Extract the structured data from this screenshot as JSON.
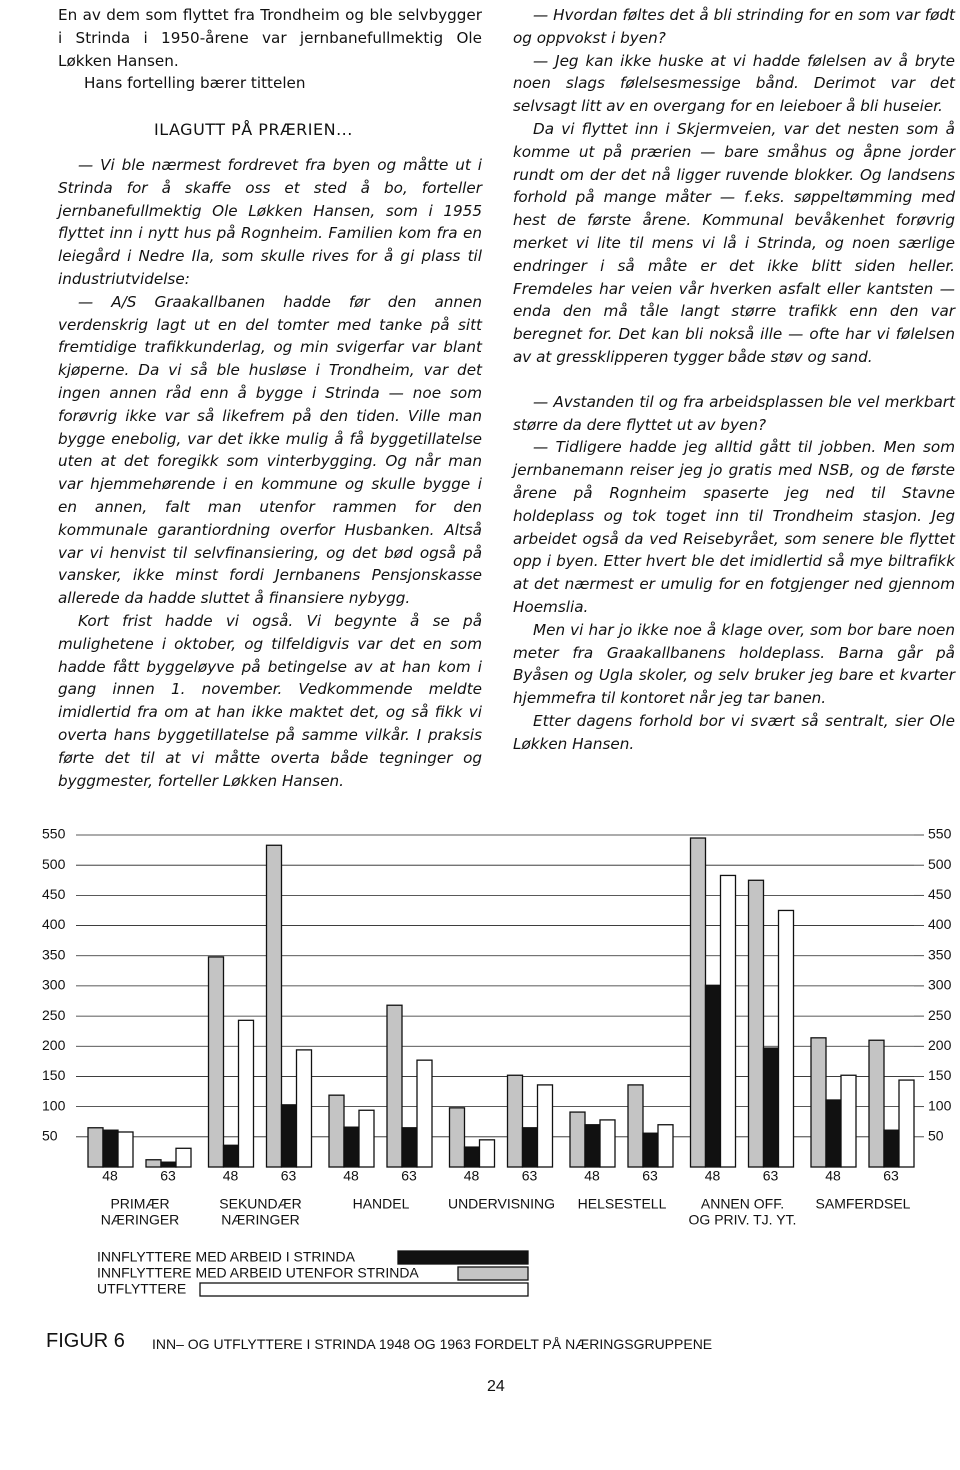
{
  "left_column": {
    "intro": [
      "En av dem som flyttet fra Trondheim og ble selvbygger i Strinda i 1950-årene var jernbanefullmektig Ole Løkken Hansen.",
      "Hans fortelling bærer tittelen"
    ],
    "heading": "ILAGUTT PÅ PRÆRIEN...",
    "paragraphs": [
      "— Vi ble nærmest fordrevet fra byen og måtte ut i Strinda for å skaffe oss et sted å bo, forteller jernbanefullmektig Ole Løkken Hansen, som i 1955 flyttet inn i nytt hus på Rognheim. Familien kom fra en leiegård i Nedre Ila, som skulle rives for å gi plass til industriutvidelse:",
      "— A/S Graakallbanen hadde før den annen verdenskrig lagt ut en del tomter med tanke på sitt fremtidige trafikkunderlag, og min svigerfar var blant kjøperne. Da vi så ble husløse i Trondheim, var det ingen annen råd enn å bygge i Strinda — noe som forøvrig ikke var så likefrem på den tiden. Ville man bygge enebolig, var det ikke mulig å få byggetillatelse uten at det foregikk som vinterbygging. Og når man var hjemmehørende i en kommune og skulle bygge i en annen, falt man utenfor rammen for den kommunale garantiordning overfor Husbanken. Altså var vi henvist til selvfinansiering, og det bød også på vansker, ikke minst fordi Jernbanens Pensjonskasse allerede da hadde sluttet å finansiere nybygg.",
      "Kort frist hadde vi også. Vi begynte å se på mulighetene i oktober, og tilfeldigvis var det en som hadde fått byggeløyve på betingelse av at han kom i gang innen 1. november. Vedkommende meldte imidlertid fra om at han ikke maktet det, og så fikk vi overta hans byggetillatelse på samme vilkår. I praksis førte det til at vi måtte overta både tegninger og byggmester, forteller Løkken Hansen."
    ]
  },
  "right_column": {
    "paragraphs": [
      "— Hvordan føltes det å bli strinding for en som var født og oppvokst i byen?",
      "— Jeg kan ikke huske at vi hadde følelsen av å bryte noen slags følelsesmessige bånd. Derimot var det selvsagt litt av en overgang for en leieboer å bli huseier.",
      "Da vi flyttet inn i Skjermveien, var det nesten som å komme ut på prærien — bare småhus og åpne jorder rundt om der det nå ligger ruvende blokker. Og landsens forhold på mange måter — f.eks. søppeltømming med hest de første årene. Kommunal bevåkenhet forøvrig merket vi lite til mens vi lå i Strinda, og noen særlige endringer i så måte er det ikke blitt siden heller. Fremdeles har veien vår hverken asfalt eller kantsten — enda den må tåle langt større trafikk enn den var beregnet for. Det kan bli nokså ille — ofte har vi følelsen av at gressklipperen tygger både støv og sand.",
      "— Avstanden til og fra arbeidsplassen ble vel merkbart større da dere flyttet ut av byen?",
      "— Tidligere hadde jeg alltid gått til jobben. Men som jernbanemann reiser jeg jo gratis med NSB, og de første årene på Rognheim spaserte jeg ned til Stavne holdeplass og tok toget inn til Trondheim stasjon. Jeg arbeidet også da ved Reisebyrået, som senere ble flyttet opp i byen. Etter hvert ble det imidlertid så mye biltrafikk at det nærmest er umulig for en fotgjenger ned gjennom Hoemslia.",
      "Men vi har jo ikke noe å klage over, som bor bare noen meter fra Graakallbanens holdeplass. Barna går på Byåsen og Ugla skoler, og selv bruker jeg bare et kvarter hjemmefra til kontoret når jeg tar banen.",
      "Etter dagens forhold bor vi svært så sentralt, sier Ole Løkken Hansen."
    ]
  },
  "chart_data": {
    "type": "bar",
    "categories": [
      "48",
      "63",
      "48",
      "63",
      "48",
      "63",
      "48",
      "63",
      "48",
      "63",
      "48",
      "63",
      "48",
      "63"
    ],
    "groups": [
      [
        "PRIMÆR",
        "NÆRINGER"
      ],
      [
        "SEKUNDÆR",
        "NÆRINGER"
      ],
      [
        "HANDEL"
      ],
      [
        "UNDERVISNING"
      ],
      [
        "HELSESTELL"
      ],
      [
        "ANNEN OFF.",
        "OG PRIV. TJ. YT."
      ],
      [
        "SAMFERDSEL"
      ]
    ],
    "series": [
      {
        "name": "INNFLYTTERE MED ARBEID I STRINDA",
        "color": "#111111",
        "values": [
          61,
          8,
          36,
          103,
          66,
          65,
          33,
          65,
          70,
          56,
          301,
          197,
          111,
          61
        ]
      },
      {
        "name": "INNFLYTTERE MED ARBEID UTENFOR STRINDA",
        "color": "#c4c4c4",
        "values": [
          65,
          12,
          348,
          533,
          119,
          268,
          98,
          152,
          91,
          136,
          545,
          475,
          214,
          210
        ]
      },
      {
        "name": "UTFLYTTERE",
        "color": "#ffffff",
        "values": [
          58,
          31,
          243,
          194,
          94,
          177,
          45,
          136,
          78,
          70,
          483,
          425,
          152,
          144
        ]
      }
    ],
    "ylim": [
      0,
      550
    ],
    "yticks": [
      50,
      100,
      150,
      200,
      250,
      300,
      350,
      400,
      450,
      500,
      550
    ],
    "y2lim": [
      0,
      550
    ],
    "y2ticks": [
      50,
      100,
      150,
      200,
      250,
      300,
      350,
      400,
      450,
      500,
      550
    ],
    "grid": true
  },
  "figure": {
    "label": "FIGUR 6",
    "caption": "INN– OG UTFLYTTERE I STRINDA 1948 OG 1963 FORDELT PÅ NÆRINGSGRUPPENE"
  },
  "page_number": "24"
}
